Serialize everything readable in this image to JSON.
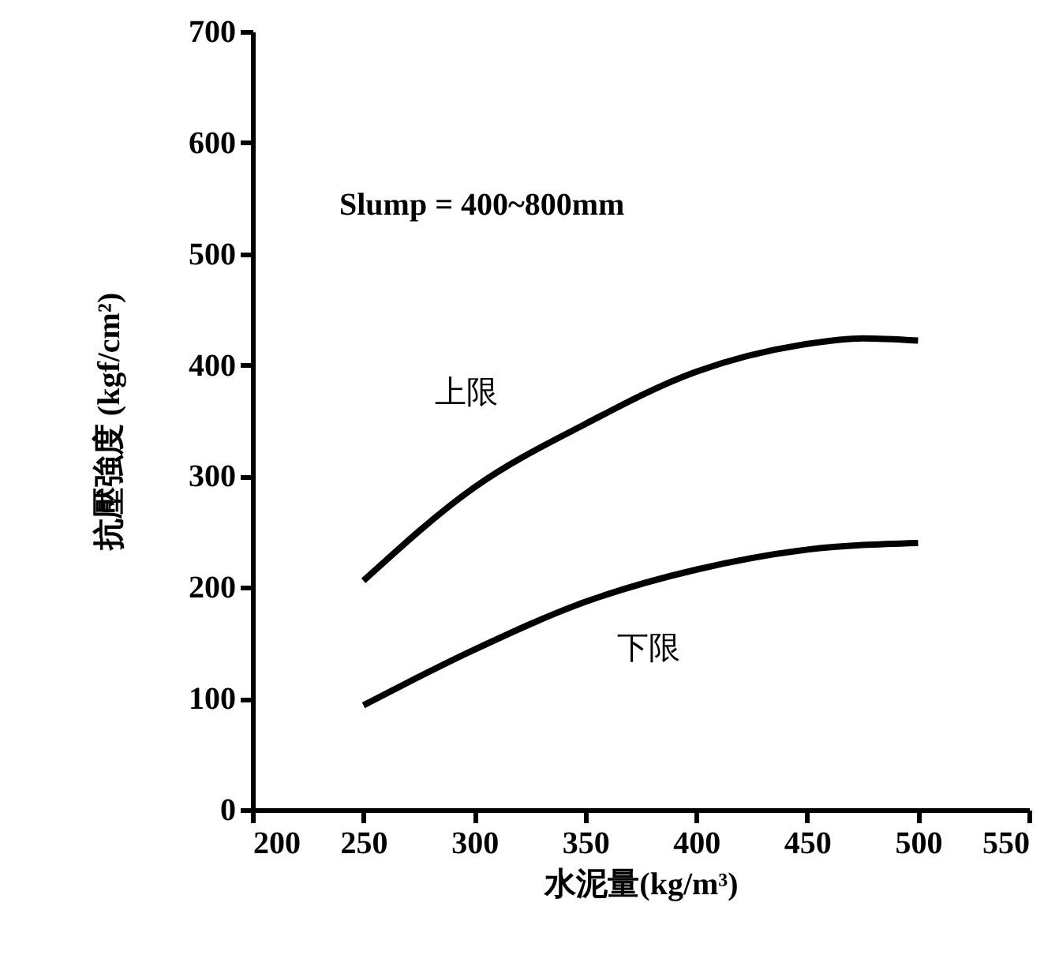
{
  "chart_data": {
    "type": "line",
    "xlabel": "水泥量(kg/m³)",
    "ylabel": "抗壓強度 (kgf/cm²)",
    "xlim": [
      200,
      550
    ],
    "xticks": [
      200,
      250,
      300,
      350,
      400,
      450,
      500,
      550
    ],
    "ylim": [
      0,
      700
    ],
    "yticks": [
      0,
      100,
      200,
      300,
      400,
      500,
      600,
      700
    ],
    "grid": false,
    "marker": "none",
    "line_style": "solid",
    "series": [
      {
        "name": "上限",
        "color": "#000000",
        "x": [
          250,
          300,
          350,
          400,
          450,
          475,
          500
        ],
        "values": [
          206,
          290,
          347,
          394,
          419,
          424,
          422
        ]
      },
      {
        "name": "下限",
        "color": "#000000",
        "x": [
          250,
          300,
          350,
          400,
          450,
          500
        ],
        "values": [
          94,
          144,
          187,
          216,
          234,
          240
        ]
      }
    ],
    "annotations": [
      "Slump = 400~800mm"
    ]
  }
}
